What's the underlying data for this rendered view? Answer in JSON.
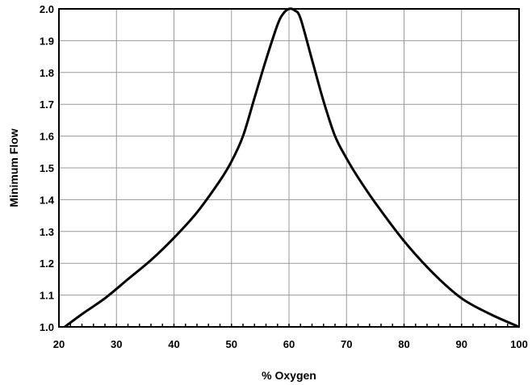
{
  "chart_data": {
    "type": "line",
    "title": "",
    "xlabel": "% Oxygen",
    "ylabel": "Minimum Flow",
    "xlim": [
      20,
      100
    ],
    "ylim": [
      1.0,
      2.0
    ],
    "x_ticks": [
      20,
      30,
      40,
      50,
      60,
      70,
      80,
      90,
      100
    ],
    "y_ticks": [
      1.0,
      1.1,
      1.2,
      1.3,
      1.4,
      1.5,
      1.6,
      1.7,
      1.8,
      1.9,
      2.0
    ],
    "grid": true,
    "legend": "none",
    "series": [
      {
        "color": "#000000",
        "x": [
          21,
          24,
          28,
          32,
          36,
          40,
          44,
          48,
          50,
          52,
          54,
          56,
          58,
          59,
          60,
          61,
          62,
          64,
          66,
          68,
          70,
          72,
          75,
          80,
          85,
          90,
          95,
          100
        ],
        "y": [
          1.0,
          1.04,
          1.09,
          1.15,
          1.21,
          1.28,
          1.36,
          1.46,
          1.52,
          1.6,
          1.72,
          1.84,
          1.95,
          1.985,
          2.0,
          1.995,
          1.97,
          1.84,
          1.71,
          1.6,
          1.53,
          1.47,
          1.39,
          1.27,
          1.17,
          1.09,
          1.04,
          1.0
        ]
      }
    ]
  }
}
